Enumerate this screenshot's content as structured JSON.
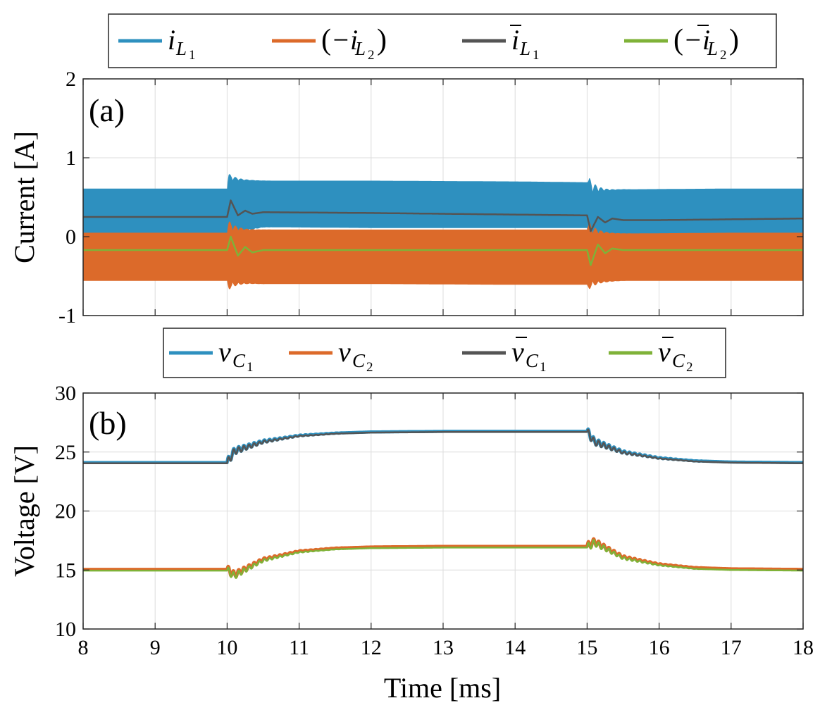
{
  "chart_data": [
    {
      "type": "area",
      "panel_label": "(a)",
      "ylabel": "Current [A]",
      "xlim": [
        8,
        18
      ],
      "ylim": [
        -1,
        2
      ],
      "x_ticks": [
        "8",
        "9",
        "10",
        "11",
        "12",
        "13",
        "14",
        "15",
        "16",
        "17",
        "18"
      ],
      "y_ticks": [
        "-1",
        "0",
        "1",
        "2"
      ],
      "grid": true,
      "legend_position": "top, outside",
      "colors": {
        "iL1": "#2e90bf",
        "iL2": "#dc6a2a",
        "iL1_avg": "#545454",
        "iL2_avg": "#7fb238"
      },
      "legend": [
        {
          "id": "iL1",
          "symbol": "i",
          "sub": "L",
          "subsub": "1",
          "paren": false,
          "bar": false
        },
        {
          "id": "iL2",
          "symbol": "−i",
          "sub": "L",
          "subsub": "2",
          "paren": true,
          "bar": false
        },
        {
          "id": "iL1_avg",
          "symbol": "i",
          "sub": "L",
          "subsub": "1",
          "paren": false,
          "bar": true
        },
        {
          "id": "iL2_avg",
          "symbol": "−i",
          "sub": "L",
          "subsub": "2",
          "paren": true,
          "bar": true
        }
      ],
      "series": [
        {
          "id": "iL1",
          "kind": "band",
          "x": [
            8,
            10,
            10.02,
            10.5,
            12,
            14,
            15,
            15.02,
            15.5,
            17,
            18
          ],
          "upper": [
            0.61,
            0.61,
            0.72,
            0.71,
            0.71,
            0.7,
            0.69,
            0.57,
            0.6,
            0.61,
            0.61
          ],
          "lower": [
            -0.1,
            -0.1,
            0.06,
            0.12,
            0.11,
            0.11,
            0.11,
            -0.05,
            -0.14,
            -0.14,
            -0.14
          ],
          "spike_max": 0.83,
          "spike_min": -0.2
        },
        {
          "id": "iL2",
          "kind": "band",
          "x": [
            8,
            10,
            10.02,
            10.5,
            12,
            14,
            15,
            15.02,
            15.5,
            17,
            18
          ],
          "upper": [
            0.05,
            0.05,
            0.08,
            0.09,
            0.09,
            0.09,
            0.09,
            0.04,
            0.04,
            0.05,
            0.05
          ],
          "lower": [
            -0.56,
            -0.56,
            -0.58,
            -0.6,
            -0.6,
            -0.61,
            -0.61,
            -0.57,
            -0.56,
            -0.56,
            -0.56
          ],
          "spike_max": 0.25,
          "spike_min": -0.71
        },
        {
          "id": "iL1_avg",
          "kind": "line",
          "x": [
            8,
            10,
            10.05,
            10.15,
            10.25,
            10.35,
            10.5,
            12,
            14,
            15,
            15.05,
            15.15,
            15.25,
            15.35,
            15.5,
            16,
            17,
            18
          ],
          "y": [
            0.25,
            0.25,
            0.46,
            0.27,
            0.33,
            0.29,
            0.31,
            0.3,
            0.28,
            0.27,
            0.07,
            0.25,
            0.18,
            0.23,
            0.21,
            0.21,
            0.22,
            0.23
          ]
        },
        {
          "id": "iL2_avg",
          "kind": "line",
          "x": [
            8,
            10,
            10.05,
            10.15,
            10.25,
            10.35,
            10.5,
            12,
            14,
            15,
            15.05,
            15.15,
            15.25,
            15.35,
            15.5,
            16,
            17,
            18
          ],
          "y": [
            -0.17,
            -0.17,
            0.0,
            -0.24,
            -0.13,
            -0.2,
            -0.17,
            -0.17,
            -0.17,
            -0.17,
            -0.36,
            -0.1,
            -0.21,
            -0.15,
            -0.17,
            -0.17,
            -0.17,
            -0.17
          ]
        }
      ]
    },
    {
      "type": "line",
      "panel_label": "(b)",
      "ylabel": "Voltage [V]",
      "xlabel": "Time [ms]",
      "xlim": [
        8,
        18
      ],
      "ylim": [
        10,
        30
      ],
      "x_ticks": [
        "8",
        "9",
        "10",
        "11",
        "12",
        "13",
        "14",
        "15",
        "16",
        "17",
        "18"
      ],
      "y_ticks": [
        "10",
        "15",
        "20",
        "25",
        "30"
      ],
      "grid": true,
      "legend_position": "top, outside",
      "colors": {
        "vC1": "#2e90bf",
        "vC2": "#dc6a2a",
        "vC1_avg": "#545454",
        "vC2_avg": "#7fb238"
      },
      "legend": [
        {
          "id": "vC1",
          "symbol": "v",
          "sub": "C",
          "subsub": "1",
          "paren": false,
          "bar": false
        },
        {
          "id": "vC2",
          "symbol": "v",
          "sub": "C",
          "subsub": "2",
          "paren": false,
          "bar": false
        },
        {
          "id": "vC1_avg",
          "symbol": "v",
          "sub": "C",
          "subsub": "1",
          "paren": false,
          "bar": true
        },
        {
          "id": "vC2_avg",
          "symbol": "v",
          "sub": "C",
          "subsub": "2",
          "paren": false,
          "bar": true
        }
      ],
      "series": [
        {
          "id": "vC1",
          "x": [
            8,
            10,
            10.1,
            10.5,
            11,
            11.5,
            12,
            13,
            15,
            15.1,
            15.5,
            16,
            16.5,
            17,
            18
          ],
          "y": [
            24.1,
            24.1,
            25.1,
            25.9,
            26.4,
            26.6,
            26.7,
            26.75,
            26.75,
            25.9,
            25.0,
            24.5,
            24.25,
            24.15,
            24.1
          ]
        },
        {
          "id": "vC2",
          "x": [
            8,
            10,
            10.1,
            10.5,
            11,
            11.5,
            12,
            13,
            15,
            15.1,
            15.5,
            16,
            16.5,
            17,
            18
          ],
          "y": [
            15.05,
            15.05,
            14.6,
            15.9,
            16.6,
            16.85,
            16.95,
            17.0,
            17.0,
            17.4,
            16.1,
            15.5,
            15.2,
            15.1,
            15.05
          ]
        },
        {
          "id": "vC1_avg",
          "x": [
            8,
            10,
            10.1,
            10.5,
            11,
            11.5,
            12,
            13,
            15,
            15.1,
            15.5,
            16,
            16.5,
            17,
            18
          ],
          "y": [
            24.05,
            24.05,
            25.05,
            25.85,
            26.35,
            26.55,
            26.65,
            26.7,
            26.7,
            25.85,
            24.95,
            24.45,
            24.2,
            24.1,
            24.05
          ]
        },
        {
          "id": "vC2_avg",
          "x": [
            8,
            10,
            10.1,
            10.5,
            11,
            11.5,
            12,
            13,
            15,
            15.1,
            15.5,
            16,
            16.5,
            17,
            18
          ],
          "y": [
            14.95,
            14.95,
            14.5,
            15.8,
            16.5,
            16.75,
            16.85,
            16.9,
            16.9,
            17.3,
            16.0,
            15.4,
            15.1,
            15.0,
            14.95
          ]
        }
      ]
    }
  ]
}
